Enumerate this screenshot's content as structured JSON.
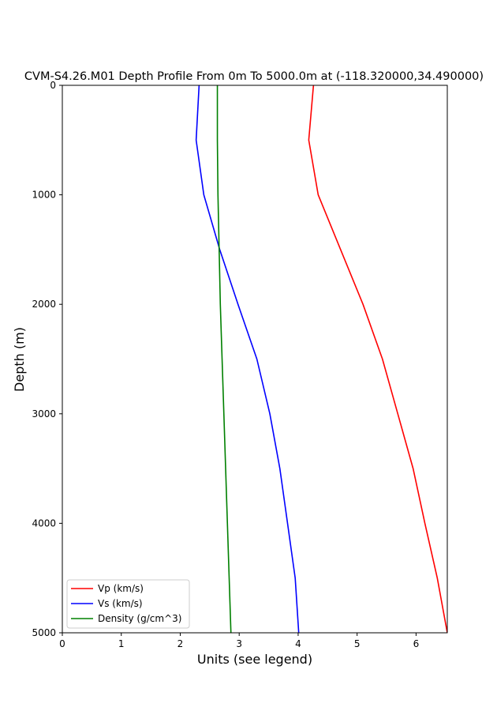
{
  "chart_data": {
    "type": "line",
    "title": "CVM-S4.26.M01 Depth Profile From 0m To 5000.0m at (-118.320000,34.490000)",
    "xlabel": "Units (see legend)",
    "ylabel": "Depth (m)",
    "xlim": [
      0,
      6.53
    ],
    "ylim": [
      0,
      5000
    ],
    "y_inverted": true,
    "x_ticks": [
      "0",
      "1",
      "2",
      "3",
      "4",
      "5",
      "6"
    ],
    "y_ticks": [
      "0",
      "1000",
      "2000",
      "3000",
      "4000",
      "5000"
    ],
    "grid": false,
    "legend_position": "lower-left",
    "series": [
      {
        "name": "Vp (km/s)",
        "color": "#ff0000",
        "x": [
          4.26,
          4.18,
          4.34,
          4.72,
          5.1,
          5.43,
          5.69,
          5.95,
          6.15,
          6.36,
          6.53
        ],
        "y": [
          0,
          500,
          1000,
          1500,
          2000,
          2500,
          3000,
          3500,
          4000,
          4500,
          5000
        ]
      },
      {
        "name": "Vs (km/s)",
        "color": "#0000ff",
        "x": [
          2.32,
          2.27,
          2.4,
          2.67,
          2.98,
          3.3,
          3.52,
          3.69,
          3.82,
          3.95,
          4.01
        ],
        "y": [
          0,
          500,
          1000,
          1500,
          2000,
          2500,
          3000,
          3500,
          4000,
          4500,
          5000
        ]
      },
      {
        "name": "Density (g/cm^3)",
        "color": "#008000",
        "x": [
          2.63,
          2.63,
          2.64,
          2.66,
          2.68,
          2.71,
          2.74,
          2.77,
          2.8,
          2.83,
          2.86
        ],
        "y": [
          0,
          500,
          1000,
          1500,
          2000,
          2500,
          3000,
          3500,
          4000,
          4500,
          5000
        ]
      }
    ]
  }
}
